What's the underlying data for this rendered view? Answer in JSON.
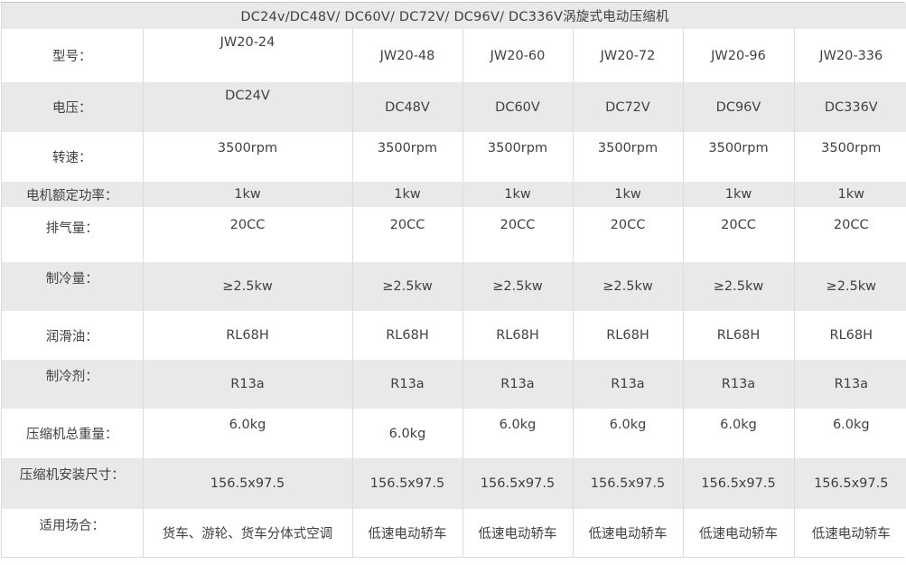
{
  "table": {
    "title": "DC24v/DC48V/ DC60V/ DC72V/ DC96V/ DC336V涡旋式电动压缩机",
    "rows": [
      {
        "label": "型号：",
        "values": [
          "JW20-24",
          "JW20-48",
          "JW20-60",
          "JW20-72",
          "JW20-96",
          "JW20-336"
        ]
      },
      {
        "label": "电压：",
        "values": [
          "DC24V",
          "DC48V",
          "DC60V",
          "DC72V",
          "DC96V",
          "DC336V"
        ]
      },
      {
        "label": "转速：",
        "values": [
          "3500rpm",
          "3500rpm",
          "3500rpm",
          "3500rpm",
          "3500rpm",
          "3500rpm"
        ]
      },
      {
        "label": "电机额定功率：",
        "values": [
          "1kw",
          "1kw",
          "1kw",
          "1kw",
          "1kw",
          "1kw"
        ]
      },
      {
        "label": "排气量：",
        "values": [
          "20CC",
          "20CC",
          "20CC",
          "20CC",
          "20CC",
          "20CC"
        ]
      },
      {
        "label": "制冷量：",
        "values": [
          "≥2.5kw",
          "≥2.5kw",
          "≥2.5kw",
          "≥2.5kw",
          "≥2.5kw",
          "≥2.5kw"
        ]
      },
      {
        "label": "润滑油：",
        "values": [
          "RL68H",
          "RL68H",
          "RL68H",
          "RL68H",
          "RL68H",
          "RL68H"
        ]
      },
      {
        "label": "制冷剂：",
        "values": [
          "R13a",
          "R13a",
          "R13a",
          "R13a",
          "R13a",
          "R13a"
        ]
      },
      {
        "label": "压缩机总重量：",
        "values": [
          "6.0kg",
          "6.0kg",
          "6.0kg",
          "6.0kg",
          "6.0kg",
          "6.0kg"
        ]
      },
      {
        "label": "压缩机安装尺寸：",
        "values": [
          "156.5x97.5",
          "156.5x97.5",
          "156.5x97.5",
          "156.5x97.5",
          "156.5x97.5",
          "156.5x97.5"
        ]
      },
      {
        "label": "适用场合：",
        "values": [
          "货车、游轮、货车分体式空调",
          "低速电动轿车",
          "低速电动轿车",
          "低速电动轿车",
          "低速电动轿车",
          "低速电动轿车"
        ]
      }
    ],
    "colors": {
      "header_bg": "#e9e9e9",
      "row_alt_bg": "#e9e9e9",
      "row_bg": "#ffffff",
      "border": "#dcdcdc",
      "text": "#414141"
    }
  }
}
